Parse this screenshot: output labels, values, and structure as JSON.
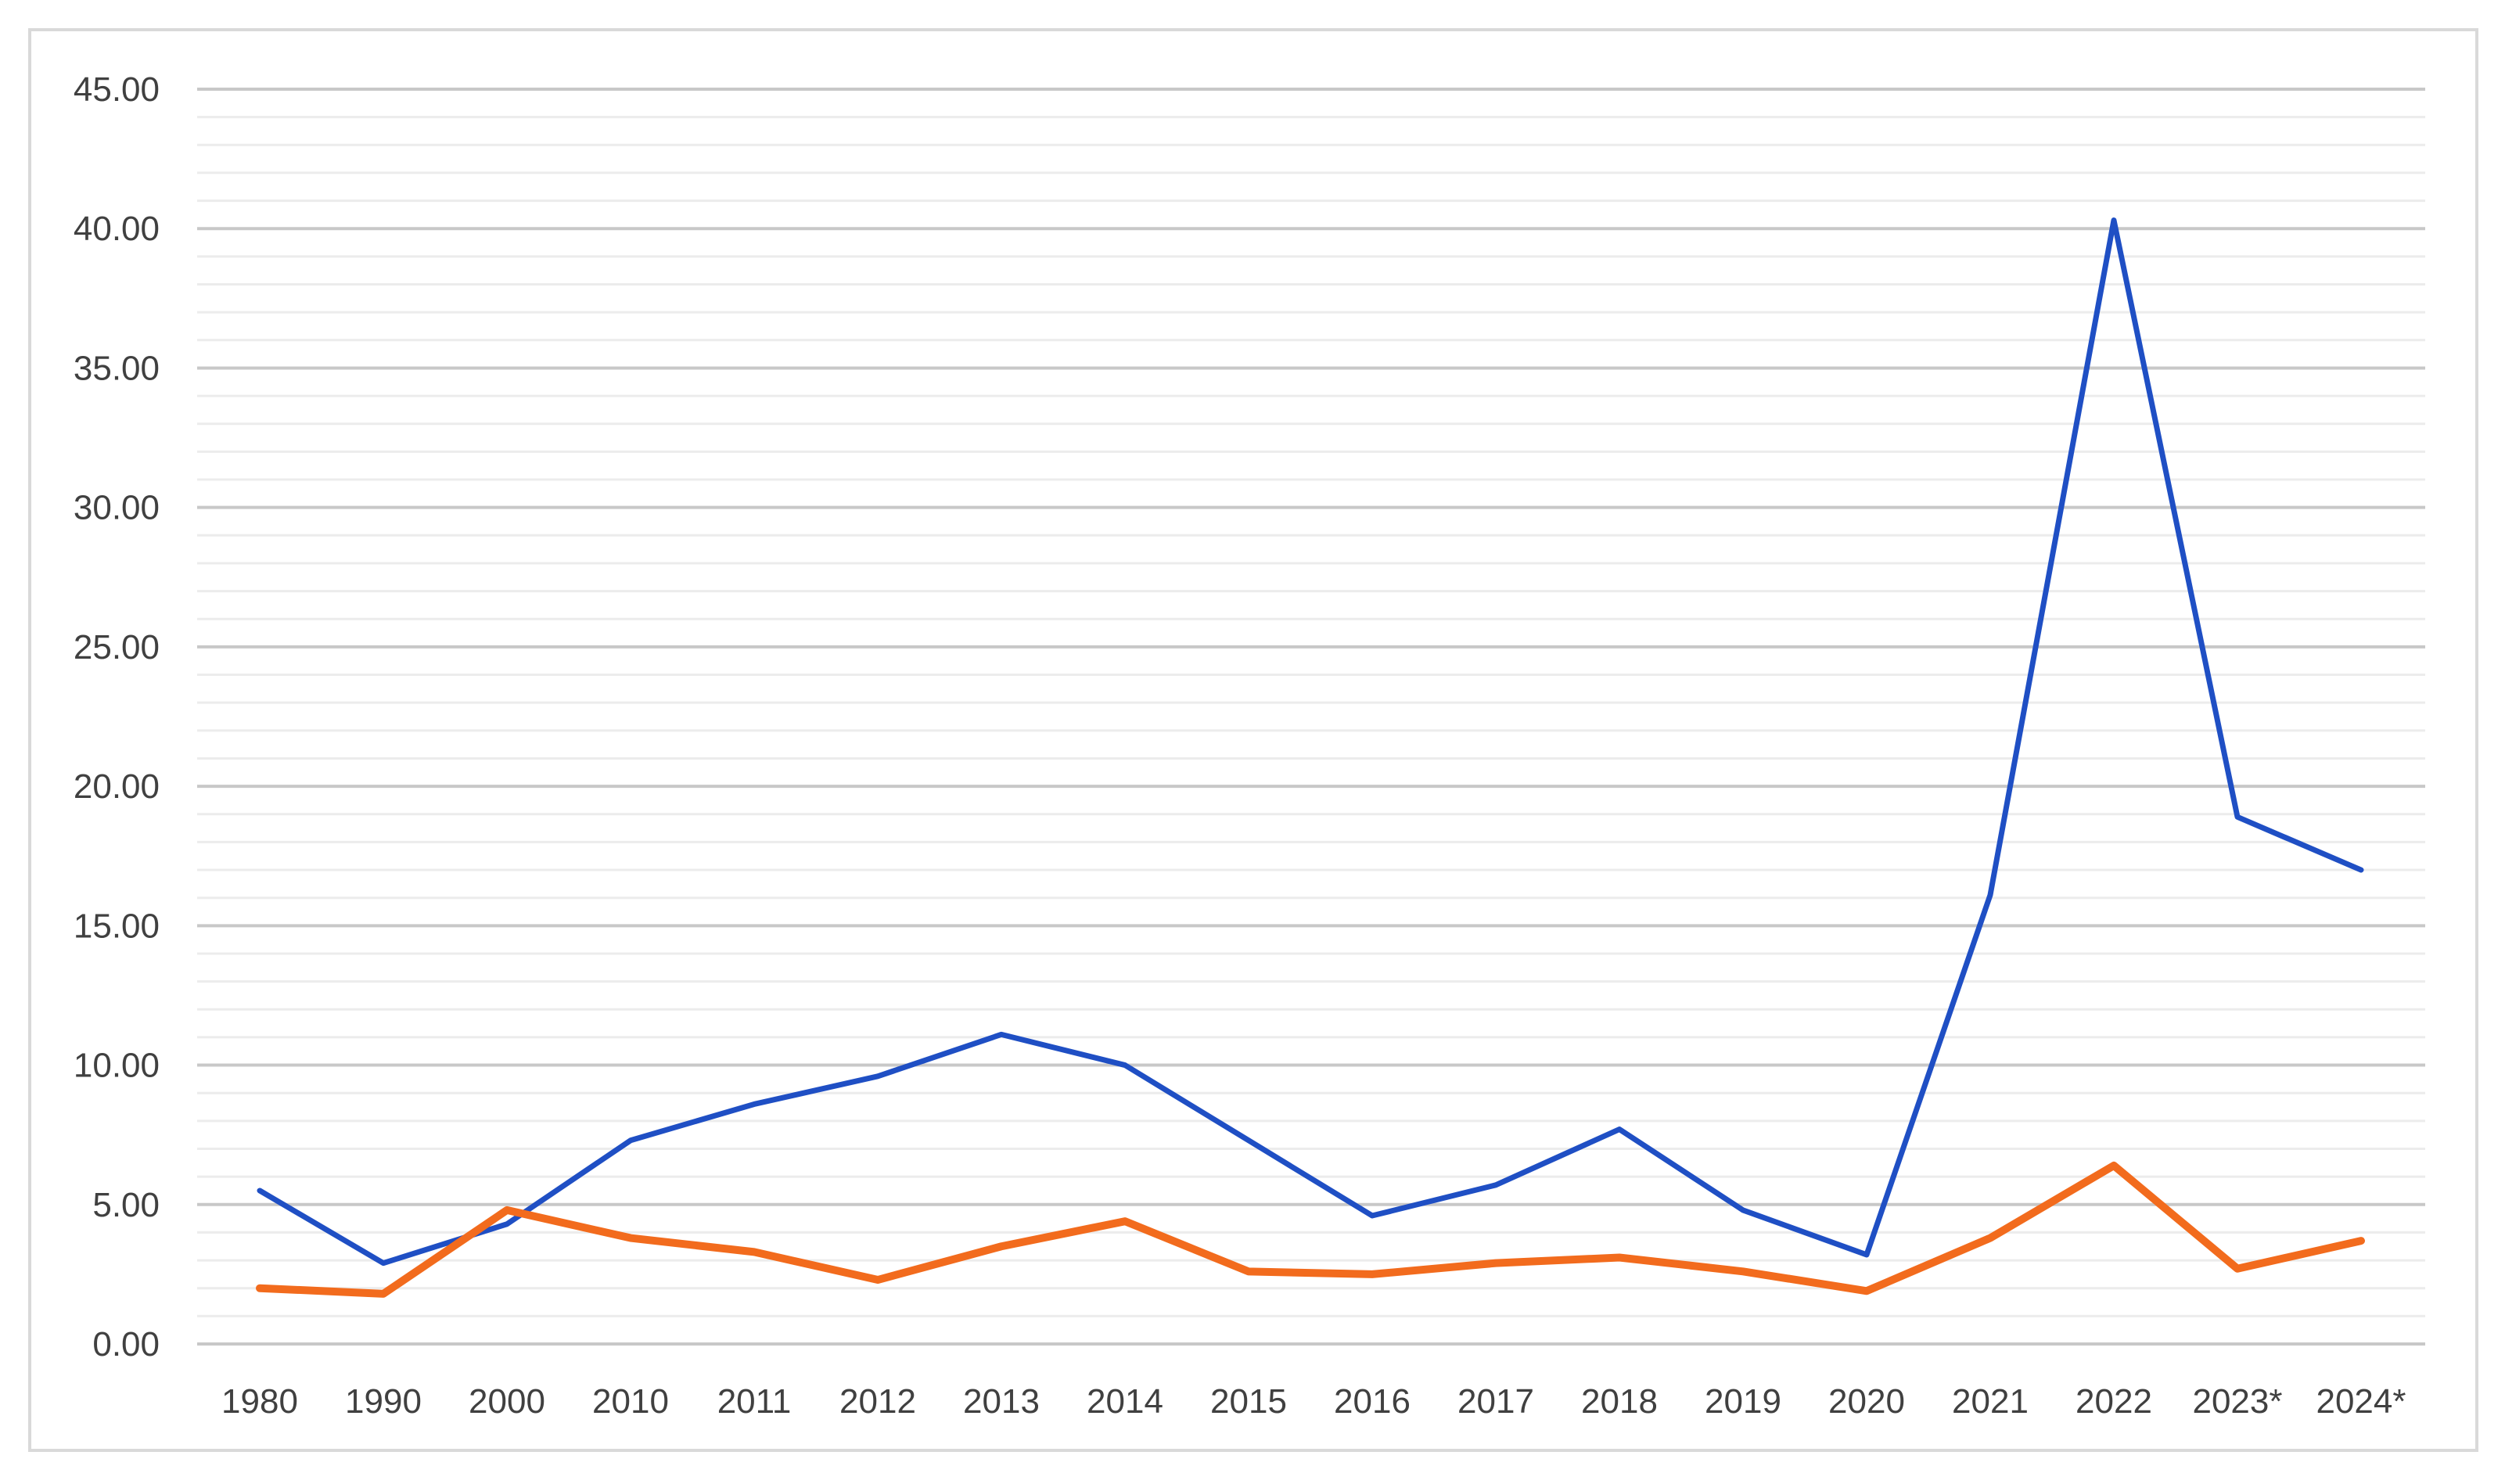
{
  "chart_data": {
    "type": "line",
    "title": "",
    "xlabel": "",
    "ylabel": "",
    "categories": [
      "1980",
      "1990",
      "2000",
      "2010",
      "2011",
      "2012",
      "2013",
      "2014",
      "2015",
      "2016",
      "2017",
      "2018",
      "2019",
      "2020",
      "2021",
      "2022",
      "2023*",
      "2024*"
    ],
    "y_ticks": [
      "0.00",
      "5.00",
      "10.00",
      "15.00",
      "20.00",
      "25.00",
      "30.00",
      "35.00",
      "40.00",
      "45.00"
    ],
    "ylim": [
      0,
      45
    ],
    "major_step": 5,
    "minor_step": 1,
    "grid": true,
    "legend": "none",
    "series": [
      {
        "color": "#1f4fc4",
        "values": [
          5.5,
          2.9,
          4.3,
          7.3,
          8.6,
          9.6,
          11.1,
          10.0,
          7.3,
          4.6,
          5.7,
          7.7,
          4.8,
          3.2,
          16.1,
          40.3,
          18.9,
          17.0
        ]
      },
      {
        "color": "#f26b1d",
        "values": [
          2.0,
          1.8,
          4.8,
          3.8,
          3.3,
          2.3,
          3.5,
          4.4,
          2.6,
          2.5,
          2.9,
          3.1,
          2.6,
          1.9,
          3.8,
          6.4,
          2.7,
          3.7
        ]
      }
    ]
  }
}
